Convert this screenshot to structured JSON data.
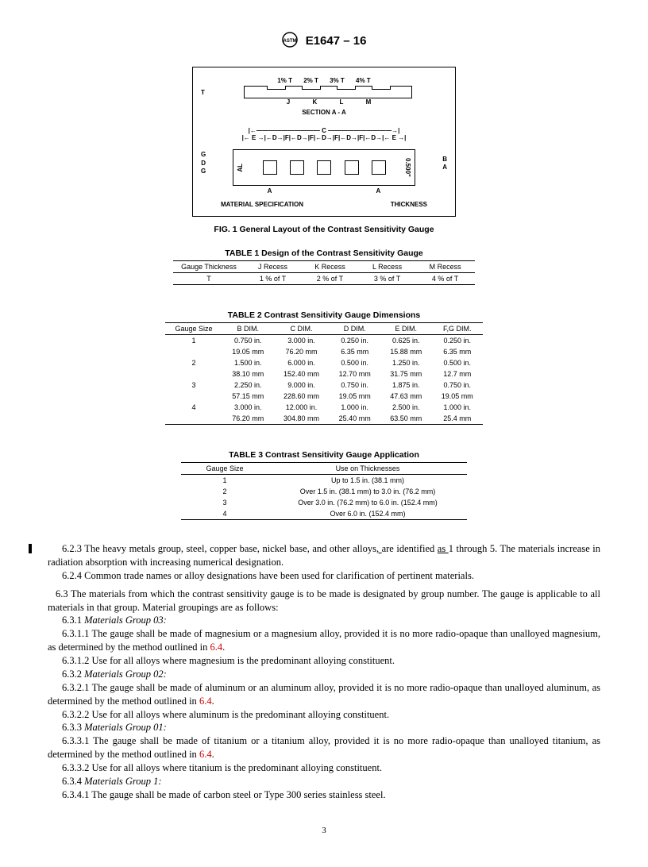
{
  "header": {
    "designation": "E1647 – 16"
  },
  "figure": {
    "top_labels": [
      "1% T",
      "2% T",
      "3% T",
      "4% T"
    ],
    "jklm": [
      "J",
      "K",
      "L",
      "M"
    ],
    "section_label": "SECTION A - A",
    "c_row": "C",
    "edf_row": "E — D F D F D F D F D — E",
    "left_side": [
      "G",
      "D",
      "G"
    ],
    "al_label": "AL",
    "thickness_side": "0.500\"",
    "b_label": "B",
    "a_labels": "A",
    "mat_spec": "MATERIAL SPECIFICATION",
    "thickness": "THICKNESS",
    "caption": "FIG. 1  General Layout of the Contrast Sensitivity Gauge",
    "t_left": "T"
  },
  "table1": {
    "caption": "TABLE 1 Design of the Contrast Sensitivity Gauge",
    "headers": [
      "Gauge Thickness",
      "J Recess",
      "K Recess",
      "L Recess",
      "M Recess"
    ],
    "row": [
      "T",
      "1 % of T",
      "2 % of T",
      "3 % of T",
      "4 % of T"
    ]
  },
  "table2": {
    "caption": "TABLE 2 Contrast Sensitivity Gauge Dimensions",
    "headers": [
      "Gauge Size",
      "B DIM.",
      "C DIM.",
      "D DIM.",
      "E DIM.",
      "F,G DIM."
    ],
    "rows": [
      [
        "1",
        "0.750 in.",
        "3.000 in.",
        "0.250 in.",
        "0.625 in.",
        "0.250 in."
      ],
      [
        "",
        "19.05 mm",
        "76.20 mm",
        "6.35 mm",
        "15.88 mm",
        "6.35 mm"
      ],
      [
        "2",
        "1.500 in.",
        "6.000 in.",
        "0.500 in.",
        "1.250 in.",
        "0.500 in."
      ],
      [
        "",
        "38.10 mm",
        "152.40 mm",
        "12.70 mm",
        "31.75 mm",
        "12.7   mm"
      ],
      [
        "3",
        "2.250 in.",
        "9.000 in.",
        "0.750 in.",
        "1.875 in.",
        "0.750 in."
      ],
      [
        "",
        "57.15 mm",
        "228.60 mm",
        "19.05 mm",
        "47.63 mm",
        "19.05 mm"
      ],
      [
        "4",
        "3.000 in.",
        "12.000 in.",
        "1.000 in.",
        "2.500 in.",
        "1.000 in."
      ],
      [
        "",
        "76.20 mm",
        "304.80 mm",
        "25.40 mm",
        "63.50 mm",
        "25.4   mm"
      ]
    ]
  },
  "table3": {
    "caption": "TABLE 3 Contrast Sensitivity Gauge Application",
    "headers": [
      "Gauge Size",
      "Use on Thicknesses"
    ],
    "rows": [
      [
        "1",
        "Up to 1.5 in. (38.1 mm)"
      ],
      [
        "2",
        "Over 1.5 in. (38.1 mm) to 3.0 in. (76.2 mm)"
      ],
      [
        "3",
        "Over 3.0 in. (76.2 mm) to 6.0 in. (152.4 mm)"
      ],
      [
        "4",
        "Over 6.0 in. (152.4 mm)"
      ]
    ]
  },
  "body": {
    "p623a": "6.2.3 The heavy metals group, steel, copper base, nickel base, and other alloys",
    "p623u": ", ",
    "p623b": "are identified ",
    "p623u2": "as ",
    "p623c": "1 through 5. The materials increase in radiation absorption with increasing numerical designation.",
    "p624": "6.2.4 Common trade names or alloy designations have been used for clarification of pertinent materials.",
    "p63": "6.3 The materials from which the contrast sensitivity gauge is to be made is designated by group number. The gauge is applicable to all materials in that group. Material groupings are as follows:",
    "p631h": "6.3.1 ",
    "p631i": "Materials Group 03:",
    "p6311a": "6.3.1.1 The gauge shall be made of magnesium or a magnesium alloy, provided it is no more radio-opaque than unalloyed magnesium, as determined by the method outlined in ",
    "link64": "6.4",
    "period": ".",
    "p6312": "6.3.1.2 Use for all alloys where magnesium is the predominant alloying constituent.",
    "p632h": "6.3.2 ",
    "p632i": "Materials Group 02:",
    "p6321a": "6.3.2.1 The gauge shall be made of aluminum or an aluminum alloy, provided it is no more radio-opaque than unalloyed aluminum, as determined by the method outlined in ",
    "p6322": "6.3.2.2 Use for all alloys where aluminum is the predominant alloying constituent.",
    "p633h": "6.3.3 ",
    "p633i": "Materials Group 01:",
    "p6331a": "6.3.3.1 The gauge shall be made of titanium or a titanium alloy, provided it is no more radio-opaque than unalloyed titanium, as determined by the method outlined in ",
    "p6332": "6.3.3.2 Use for all alloys where titanium is the predominant alloying constituent.",
    "p634h": "6.3.4 ",
    "p634i": "Materials Group 1:",
    "p6341": "6.3.4.1 The gauge shall be made of carbon steel or Type 300 series stainless steel."
  },
  "page": "3"
}
